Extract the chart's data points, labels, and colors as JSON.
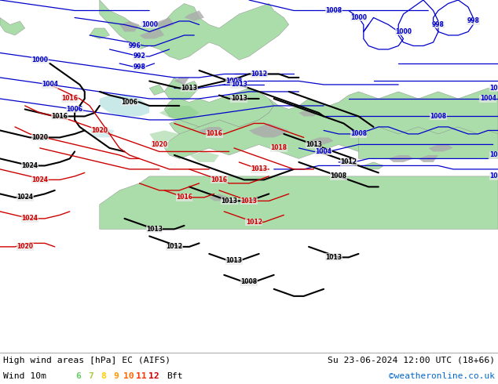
{
  "title_left": "High wind areas [hPa] EC (AIFS)",
  "title_right": "Su 23-06-2024 12:00 UTC (18+66)",
  "subtitle_left": "Wind 10m",
  "legend_values": [
    "6",
    "7",
    "8",
    "9",
    "10",
    "11",
    "12"
  ],
  "legend_colors": [
    "#66cc66",
    "#aacc44",
    "#ffcc00",
    "#ff9900",
    "#ff6600",
    "#ff3300",
    "#cc0000"
  ],
  "legend_suffix": "Bft",
  "credit": "©weatheronline.co.uk",
  "sea_color": "#e8e8e8",
  "land_color": "#aaddaa",
  "mountain_color": "#aaaaaa",
  "bottom_bar_color": "#ffffff",
  "title_color": "#000000",
  "credit_color": "#0066cc",
  "figsize": [
    6.34,
    4.9
  ],
  "dpi": 100
}
